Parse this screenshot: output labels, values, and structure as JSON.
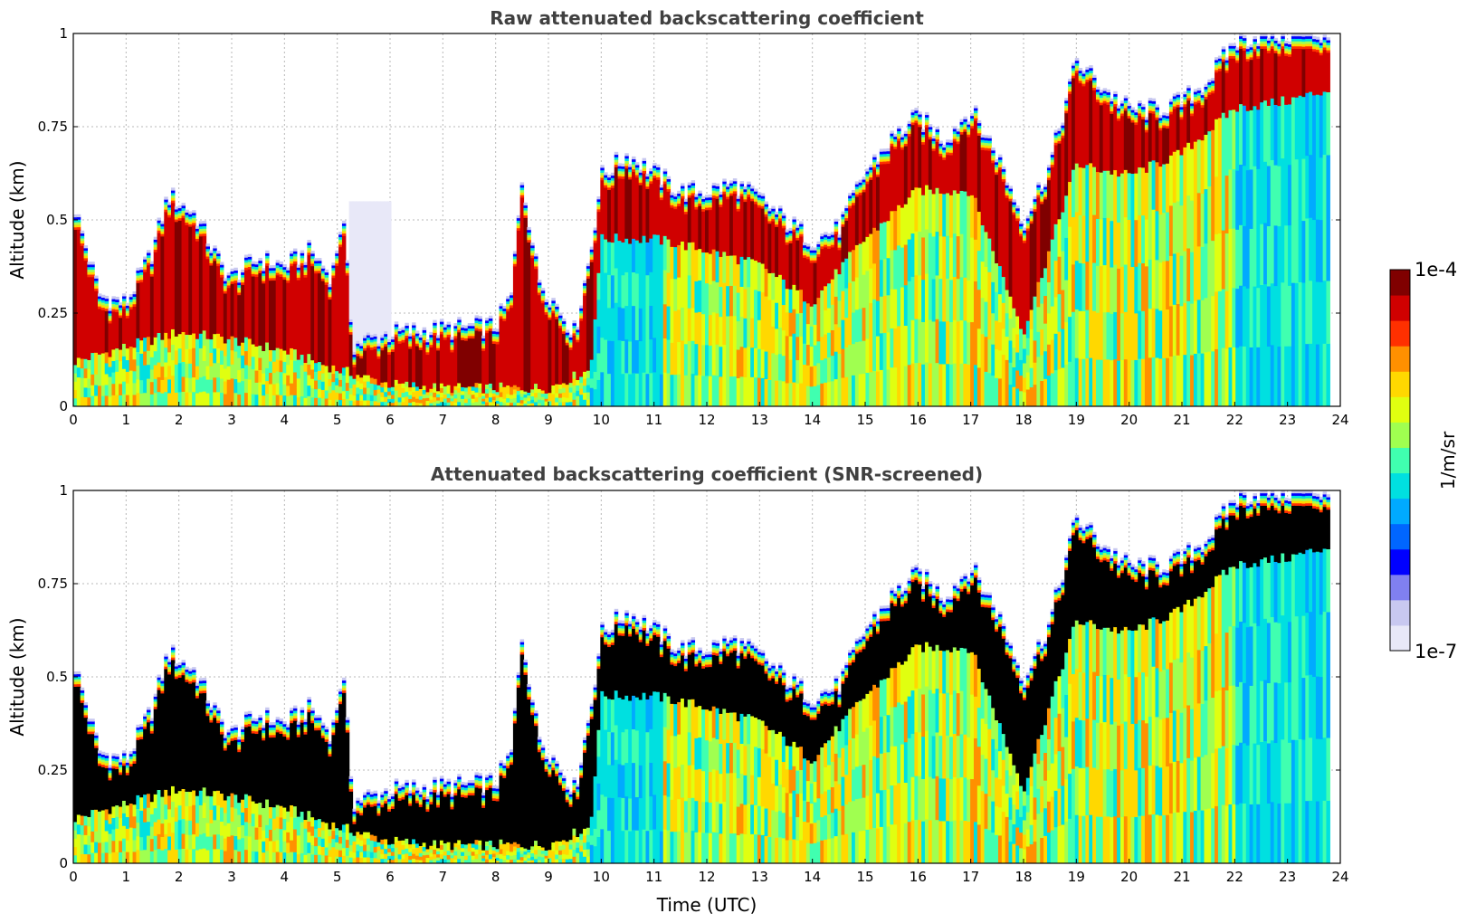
{
  "chart_data": [
    {
      "type": "heatmap",
      "title": "Raw attenuated backscattering coefficient",
      "xlabel": "",
      "ylabel": "Altitude (km)",
      "xlim": [
        0,
        24
      ],
      "ylim": [
        0,
        1
      ],
      "x_ticks": [
        "0",
        "1",
        "2",
        "3",
        "4",
        "5",
        "6",
        "7",
        "8",
        "9",
        "10",
        "11",
        "12",
        "13",
        "14",
        "15",
        "16",
        "17",
        "18",
        "19",
        "20",
        "21",
        "22",
        "23",
        "24"
      ],
      "y_ticks": [
        "0",
        "0.25",
        "0.5",
        "0.75",
        "1"
      ],
      "grid": true,
      "screened": false,
      "layer_top_km": [
        [
          0,
          0.55
        ],
        [
          0.5,
          0.3
        ],
        [
          1,
          0.28
        ],
        [
          1.5,
          0.42
        ],
        [
          1.8,
          0.57
        ],
        [
          2.3,
          0.52
        ],
        [
          2.8,
          0.38
        ],
        [
          3,
          0.35
        ],
        [
          3.5,
          0.4
        ],
        [
          4,
          0.38
        ],
        [
          4.5,
          0.42
        ],
        [
          4.9,
          0.35
        ],
        [
          5.1,
          0.52
        ],
        [
          5.3,
          0.17
        ],
        [
          6,
          0.2
        ],
        [
          7,
          0.21
        ],
        [
          8,
          0.22
        ],
        [
          8.3,
          0.3
        ],
        [
          8.5,
          0.62
        ],
        [
          8.8,
          0.35
        ],
        [
          9.5,
          0.2
        ],
        [
          9.8,
          0.42
        ],
        [
          10,
          0.62
        ],
        [
          10.5,
          0.68
        ],
        [
          11,
          0.63
        ],
        [
          11.5,
          0.58
        ],
        [
          12,
          0.58
        ],
        [
          12.5,
          0.6
        ],
        [
          13,
          0.56
        ],
        [
          13.5,
          0.5
        ],
        [
          14,
          0.45
        ],
        [
          14.5,
          0.48
        ],
        [
          15,
          0.63
        ],
        [
          15.5,
          0.72
        ],
        [
          16,
          0.78
        ],
        [
          16.5,
          0.72
        ],
        [
          17,
          0.8
        ],
        [
          17.5,
          0.68
        ],
        [
          18,
          0.5
        ],
        [
          18.5,
          0.65
        ],
        [
          19,
          0.93
        ],
        [
          19.5,
          0.86
        ],
        [
          20,
          0.8
        ],
        [
          20.5,
          0.8
        ],
        [
          21,
          0.82
        ],
        [
          21.5,
          0.88
        ],
        [
          22,
          0.98
        ],
        [
          22.5,
          1.0
        ],
        [
          23,
          1.0
        ],
        [
          23.8,
          1.0
        ]
      ],
      "layer_base_km": [
        [
          0,
          0.12
        ],
        [
          1,
          0.16
        ],
        [
          2,
          0.2
        ],
        [
          3,
          0.18
        ],
        [
          4,
          0.15
        ],
        [
          5,
          0.1
        ],
        [
          6,
          0.06
        ],
        [
          7,
          0.05
        ],
        [
          8,
          0.05
        ],
        [
          9,
          0.05
        ],
        [
          9.8,
          0.1
        ],
        [
          10,
          0.45
        ],
        [
          11,
          0.45
        ],
        [
          12,
          0.42
        ],
        [
          13,
          0.38
        ],
        [
          14,
          0.28
        ],
        [
          15,
          0.45
        ],
        [
          16,
          0.58
        ],
        [
          17,
          0.58
        ],
        [
          18,
          0.2
        ],
        [
          19,
          0.65
        ],
        [
          20,
          0.62
        ],
        [
          21,
          0.68
        ],
        [
          22,
          0.8
        ],
        [
          23,
          0.82
        ],
        [
          23.8,
          0.85
        ]
      ]
    },
    {
      "type": "heatmap",
      "title": "Attenuated backscattering coefficient (SNR-screened)",
      "xlabel": "Time (UTC)",
      "ylabel": "Altitude (km)",
      "xlim": [
        0,
        24
      ],
      "ylim": [
        0,
        1
      ],
      "x_ticks": [
        "0",
        "1",
        "2",
        "3",
        "4",
        "5",
        "6",
        "7",
        "8",
        "9",
        "10",
        "11",
        "12",
        "13",
        "14",
        "15",
        "16",
        "17",
        "18",
        "19",
        "20",
        "21",
        "22",
        "23",
        "24"
      ],
      "y_ticks": [
        "0",
        "0.25",
        "0.5",
        "0.75",
        "1"
      ],
      "grid": true,
      "screened": true,
      "screened_color": "#000000"
    }
  ],
  "colorbar": {
    "label": "1/m/sr",
    "max_label": "1e-4",
    "min_label": "1e-7",
    "scale": "log",
    "colors": [
      "#e8e8f8",
      "#c8c8f0",
      "#8080f0",
      "#0000ff",
      "#0066ff",
      "#00aaff",
      "#00e0e0",
      "#40ffb0",
      "#a0ff50",
      "#e0ff10",
      "#ffd800",
      "#ff9000",
      "#ff3000",
      "#d00000",
      "#800000"
    ]
  }
}
